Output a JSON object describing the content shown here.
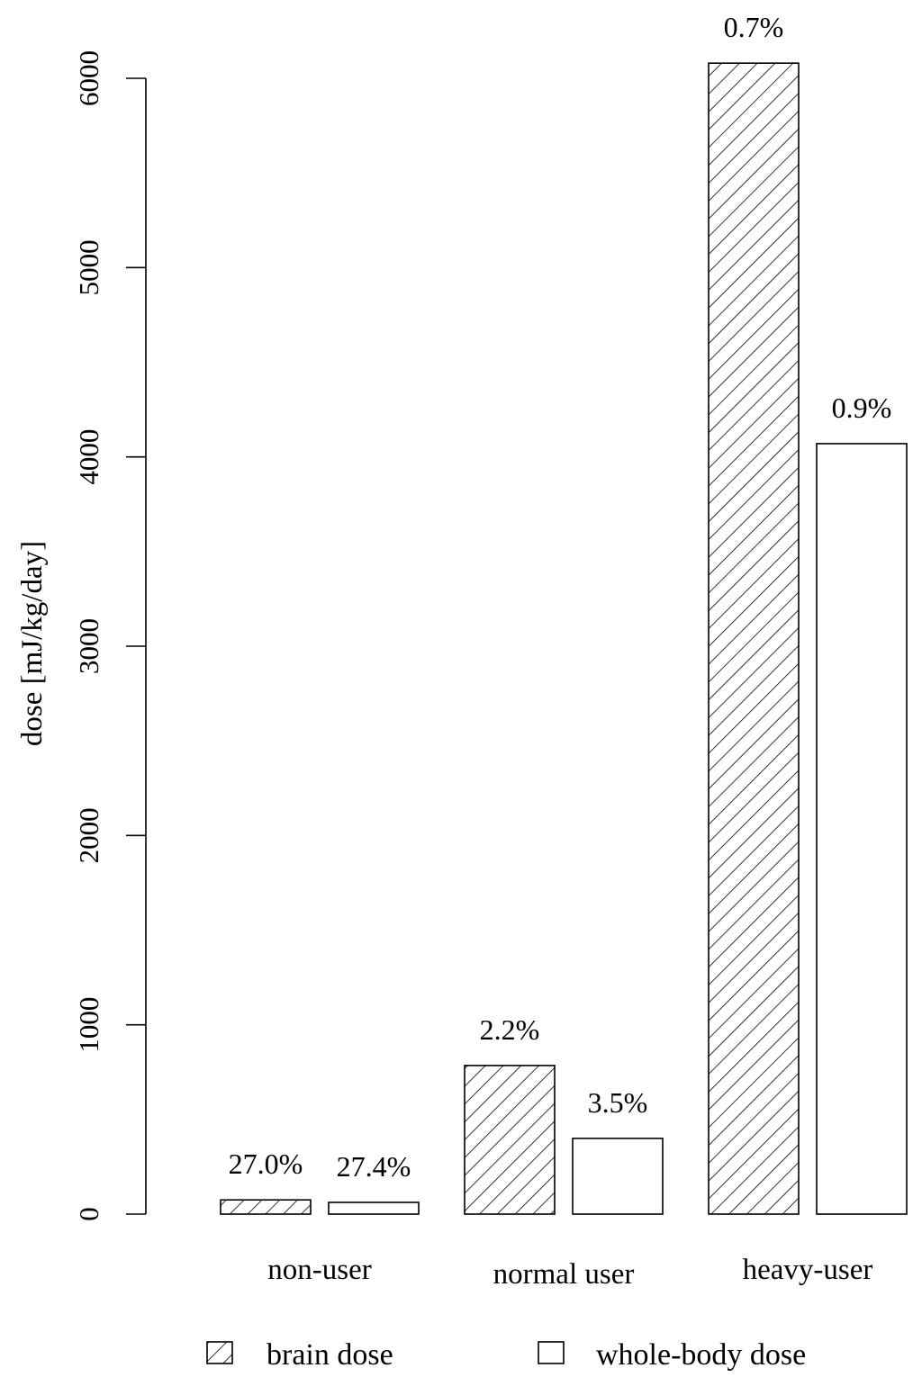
{
  "chart_data": {
    "type": "bar",
    "title": "",
    "xlabel": "",
    "ylabel": "dose [mJ/kg/day]",
    "categories": [
      "non-user",
      "normal user",
      "heavy-user"
    ],
    "series": [
      {
        "name": "brain dose",
        "pattern": "diagonal-hatch",
        "values": [
          75,
          785,
          6080
        ],
        "labels": [
          "27.0%",
          "2.2%",
          "0.7%"
        ]
      },
      {
        "name": "whole-body dose",
        "pattern": "none",
        "values": [
          62,
          400,
          4070
        ],
        "labels": [
          "27.4%",
          "3.5%",
          "0.9%"
        ]
      }
    ],
    "ylim": [
      0,
      6000
    ],
    "yticks": [
      0,
      1000,
      2000,
      3000,
      4000,
      5000,
      6000
    ],
    "ytick_labels": [
      "0",
      "1000",
      "2000",
      "3000",
      "4000",
      "5000",
      "6000"
    ],
    "grid": false,
    "legend_position": "bottom",
    "colors": {
      "stroke": "#000000",
      "fill": "#ffffff"
    }
  }
}
